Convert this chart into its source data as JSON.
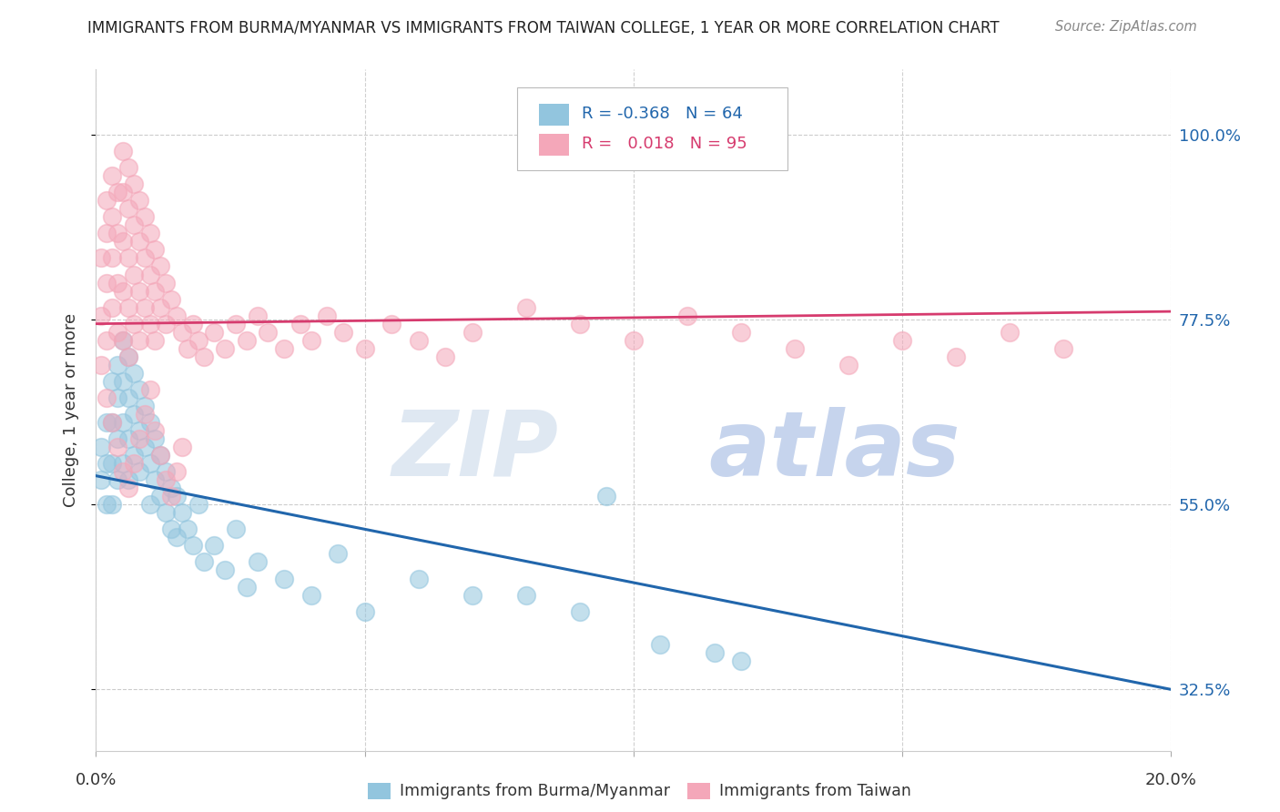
{
  "title": "IMMIGRANTS FROM BURMA/MYANMAR VS IMMIGRANTS FROM TAIWAN COLLEGE, 1 YEAR OR MORE CORRELATION CHART",
  "source": "Source: ZipAtlas.com",
  "xlabel_blue": "Immigrants from Burma/Myanmar",
  "xlabel_pink": "Immigrants from Taiwan",
  "ylabel": "College, 1 year or more",
  "xlim": [
    0.0,
    0.2
  ],
  "ylim_data": [
    0.25,
    1.08
  ],
  "yticks": [
    0.325,
    0.55,
    0.775,
    1.0
  ],
  "ytick_labels": [
    "32.5%",
    "55.0%",
    "77.5%",
    "100.0%"
  ],
  "xticks": [
    0.0,
    0.05,
    0.1,
    0.15,
    0.2
  ],
  "r_blue": "-0.368",
  "n_blue": "64",
  "r_pink": "0.018",
  "n_pink": "95",
  "blue_color": "#92c5de",
  "pink_color": "#f4a7b9",
  "blue_line_color": "#2166ac",
  "pink_line_color": "#d63b6e",
  "watermark": "ZIPatlas",
  "blue_line_x0": 0.0,
  "blue_line_y0": 0.585,
  "blue_line_x1": 0.2,
  "blue_line_y1": 0.325,
  "pink_line_x0": 0.0,
  "pink_line_y0": 0.77,
  "pink_line_x1": 0.2,
  "pink_line_y1": 0.785,
  "blue_points_x": [
    0.001,
    0.001,
    0.002,
    0.002,
    0.002,
    0.003,
    0.003,
    0.003,
    0.003,
    0.004,
    0.004,
    0.004,
    0.004,
    0.005,
    0.005,
    0.005,
    0.005,
    0.006,
    0.006,
    0.006,
    0.006,
    0.007,
    0.007,
    0.007,
    0.008,
    0.008,
    0.008,
    0.009,
    0.009,
    0.01,
    0.01,
    0.01,
    0.011,
    0.011,
    0.012,
    0.012,
    0.013,
    0.013,
    0.014,
    0.014,
    0.015,
    0.015,
    0.016,
    0.017,
    0.018,
    0.019,
    0.02,
    0.022,
    0.024,
    0.026,
    0.028,
    0.03,
    0.035,
    0.04,
    0.045,
    0.05,
    0.06,
    0.07,
    0.08,
    0.09,
    0.095,
    0.105,
    0.115,
    0.12
  ],
  "blue_points_y": [
    0.62,
    0.58,
    0.65,
    0.6,
    0.55,
    0.7,
    0.65,
    0.6,
    0.55,
    0.72,
    0.68,
    0.63,
    0.58,
    0.75,
    0.7,
    0.65,
    0.6,
    0.73,
    0.68,
    0.63,
    0.58,
    0.71,
    0.66,
    0.61,
    0.69,
    0.64,
    0.59,
    0.67,
    0.62,
    0.65,
    0.6,
    0.55,
    0.63,
    0.58,
    0.61,
    0.56,
    0.59,
    0.54,
    0.57,
    0.52,
    0.56,
    0.51,
    0.54,
    0.52,
    0.5,
    0.55,
    0.48,
    0.5,
    0.47,
    0.52,
    0.45,
    0.48,
    0.46,
    0.44,
    0.49,
    0.42,
    0.46,
    0.44,
    0.44,
    0.42,
    0.56,
    0.38,
    0.37,
    0.36
  ],
  "pink_points_x": [
    0.001,
    0.001,
    0.001,
    0.002,
    0.002,
    0.002,
    0.002,
    0.003,
    0.003,
    0.003,
    0.003,
    0.004,
    0.004,
    0.004,
    0.004,
    0.005,
    0.005,
    0.005,
    0.005,
    0.005,
    0.006,
    0.006,
    0.006,
    0.006,
    0.006,
    0.007,
    0.007,
    0.007,
    0.007,
    0.008,
    0.008,
    0.008,
    0.008,
    0.009,
    0.009,
    0.009,
    0.01,
    0.01,
    0.01,
    0.011,
    0.011,
    0.011,
    0.012,
    0.012,
    0.013,
    0.013,
    0.014,
    0.015,
    0.016,
    0.017,
    0.018,
    0.019,
    0.02,
    0.022,
    0.024,
    0.026,
    0.028,
    0.03,
    0.032,
    0.035,
    0.038,
    0.04,
    0.043,
    0.046,
    0.05,
    0.055,
    0.06,
    0.065,
    0.07,
    0.08,
    0.09,
    0.1,
    0.11,
    0.12,
    0.13,
    0.14,
    0.15,
    0.16,
    0.17,
    0.18,
    0.002,
    0.003,
    0.004,
    0.005,
    0.006,
    0.007,
    0.008,
    0.009,
    0.01,
    0.011,
    0.012,
    0.013,
    0.014,
    0.015,
    0.016
  ],
  "pink_points_y": [
    0.85,
    0.78,
    0.72,
    0.92,
    0.88,
    0.82,
    0.75,
    0.95,
    0.9,
    0.85,
    0.79,
    0.93,
    0.88,
    0.82,
    0.76,
    0.98,
    0.93,
    0.87,
    0.81,
    0.75,
    0.96,
    0.91,
    0.85,
    0.79,
    0.73,
    0.94,
    0.89,
    0.83,
    0.77,
    0.92,
    0.87,
    0.81,
    0.75,
    0.9,
    0.85,
    0.79,
    0.88,
    0.83,
    0.77,
    0.86,
    0.81,
    0.75,
    0.84,
    0.79,
    0.82,
    0.77,
    0.8,
    0.78,
    0.76,
    0.74,
    0.77,
    0.75,
    0.73,
    0.76,
    0.74,
    0.77,
    0.75,
    0.78,
    0.76,
    0.74,
    0.77,
    0.75,
    0.78,
    0.76,
    0.74,
    0.77,
    0.75,
    0.73,
    0.76,
    0.79,
    0.77,
    0.75,
    0.78,
    0.76,
    0.74,
    0.72,
    0.75,
    0.73,
    0.76,
    0.74,
    0.68,
    0.65,
    0.62,
    0.59,
    0.57,
    0.6,
    0.63,
    0.66,
    0.69,
    0.64,
    0.61,
    0.58,
    0.56,
    0.59,
    0.62
  ]
}
